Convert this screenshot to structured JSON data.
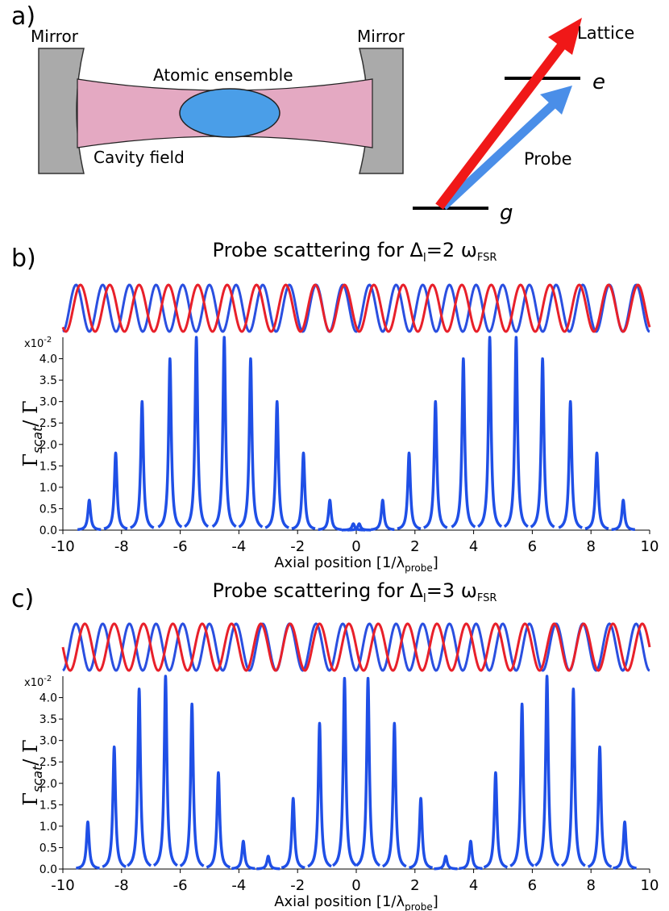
{
  "diagram": {
    "label": "a)",
    "mirror_left": "Mirror",
    "mirror_right": "Mirror",
    "ensemble": "Atomic ensemble",
    "field": "Cavity field",
    "lattice": "Lattice",
    "probe": "Probe",
    "excited": "e",
    "ground": "g"
  },
  "chart_data": [
    {
      "type": "peaks",
      "label": "b)",
      "title": [
        "Probe scattering for Δ",
        "l",
        "=2 ω",
        "FSR"
      ],
      "x_label": [
        "Axial position [1/λ",
        "probe",
        "]"
      ],
      "y_label": [
        "Γ",
        "scat",
        "/ Γ"
      ],
      "y_unit": [
        "x10",
        "-2"
      ],
      "color": "#1f4fe6",
      "x": [
        -9.1,
        -8.2,
        -7.3,
        -6.35,
        -5.45,
        -4.5,
        -3.6,
        -2.7,
        -1.8,
        -0.9,
        -0.1,
        0.1,
        0.9,
        1.8,
        2.7,
        3.65,
        4.55,
        5.45,
        6.35,
        7.3,
        8.2,
        9.1
      ],
      "values": [
        0.7,
        1.8,
        3.0,
        4.0,
        4.5,
        4.5,
        4.0,
        3.0,
        1.8,
        0.7,
        0.15,
        0.15,
        0.7,
        1.8,
        3.0,
        4.0,
        4.5,
        4.5,
        4.0,
        3.0,
        1.8,
        0.7
      ],
      "xlim": [
        -10,
        10
      ],
      "xticks": [
        -10,
        -8,
        -6,
        -4,
        -2,
        0,
        2,
        4,
        6,
        8,
        10
      ],
      "ylim": [
        0,
        4.5
      ],
      "yticks": [
        {
          "value": 0,
          "label": "0.0"
        },
        0.5,
        {
          "value": 1,
          "label": "1.0"
        },
        1.5,
        {
          "value": 2,
          "label": "2.0"
        },
        2.5,
        {
          "value": 3,
          "label": "3.0"
        },
        3.5,
        {
          "value": 4,
          "label": "4.0"
        }
      ]
    },
    {
      "type": "peaks",
      "label": "c)",
      "title": [
        "Probe scattering for Δ",
        "l",
        "=3 ω",
        "FSR"
      ],
      "x_label": [
        "Axial position [1/λ",
        "probe",
        "]"
      ],
      "y_label": [
        "Γ",
        "scat",
        "/ Γ"
      ],
      "y_unit": [
        "x10",
        "-2"
      ],
      "color": "#1f4fe6",
      "x": [
        -9.15,
        -8.25,
        -7.4,
        -6.5,
        -5.6,
        -4.7,
        -3.85,
        -3.0,
        -2.15,
        -1.25,
        -0.4,
        0.4,
        1.3,
        2.2,
        3.05,
        3.9,
        4.75,
        5.65,
        6.5,
        7.4,
        8.3,
        9.15
      ],
      "values": [
        1.1,
        2.85,
        4.2,
        4.5,
        3.85,
        2.25,
        0.65,
        0.3,
        1.65,
        3.4,
        4.45,
        4.45,
        3.4,
        1.65,
        0.3,
        0.65,
        2.25,
        3.85,
        4.5,
        4.2,
        2.85,
        1.1
      ],
      "xlim": [
        -10,
        10
      ],
      "xticks": [
        -10,
        -8,
        -6,
        -4,
        -2,
        0,
        2,
        4,
        6,
        8,
        10
      ],
      "ylim": [
        0,
        4.5
      ],
      "yticks": [
        {
          "value": 0,
          "label": "0.0"
        },
        0.5,
        {
          "value": 1,
          "label": "1.0"
        },
        1.5,
        {
          "value": 2,
          "label": "2.0"
        },
        2.5,
        {
          "value": 3,
          "label": "3.0"
        },
        3.5,
        {
          "value": 4,
          "label": "4.0"
        }
      ]
    }
  ]
}
